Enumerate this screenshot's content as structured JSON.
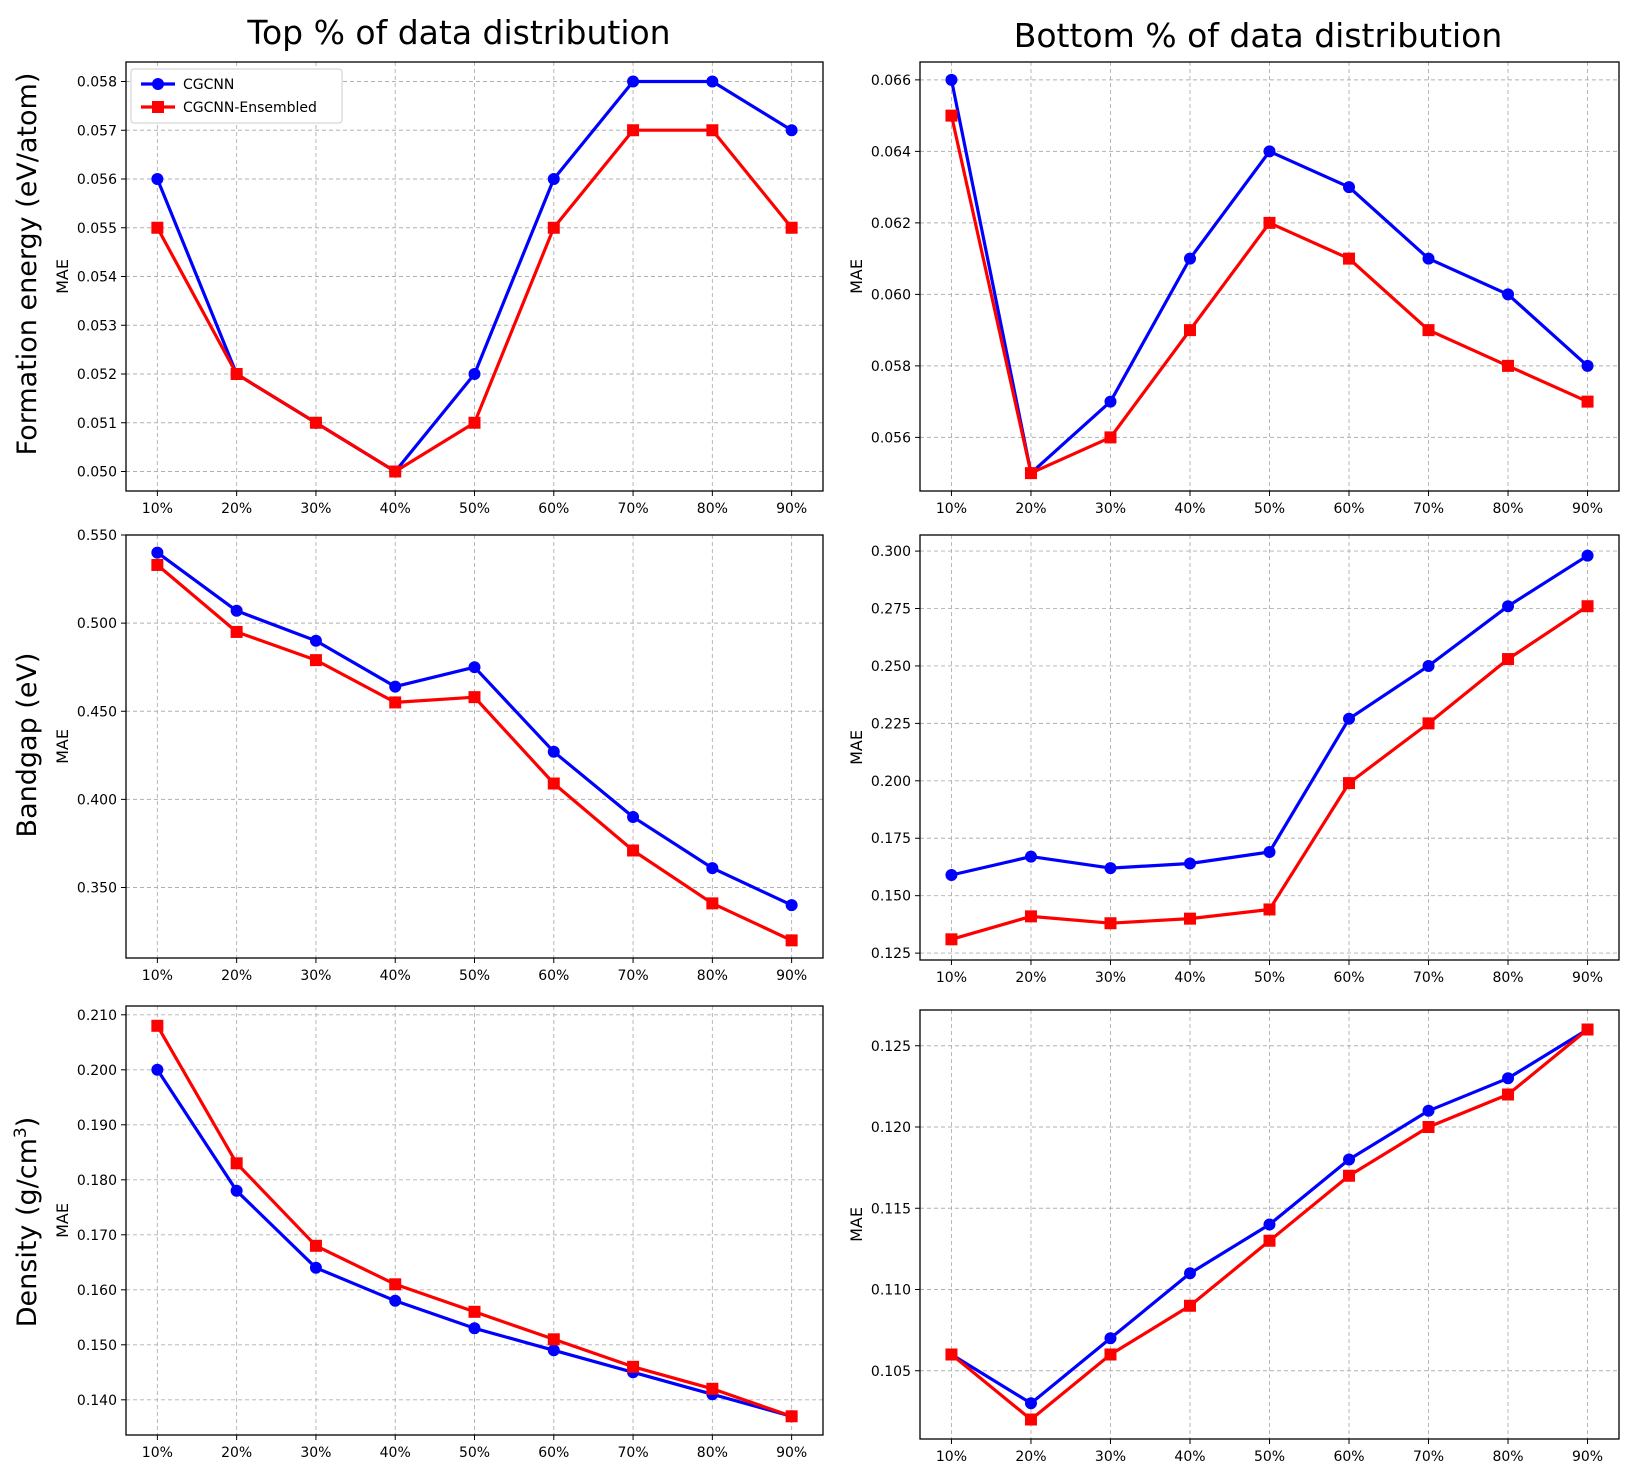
{
  "figure": {
    "column_titles": [
      "Top % of data distribution",
      "Bottom % of data distribution"
    ],
    "row_labels": [
      {
        "text": "Formation energy (eV/atom)",
        "sup": ""
      },
      {
        "text": "Bandgap (eV)",
        "sup": ""
      },
      {
        "text": "Density (g/cm",
        "sup": "3",
        "tail": ")"
      }
    ],
    "colors": {
      "CGCNN": "#0000ff",
      "CGCNN-Ensembled": "#ff0000",
      "grid": "#b0b0b0"
    }
  },
  "chart_data": [
    {
      "type": "line",
      "row": 0,
      "col": 0,
      "title": "",
      "xlabel": "",
      "ylabel": "MAE",
      "categories": [
        "10%",
        "20%",
        "30%",
        "40%",
        "50%",
        "60%",
        "70%",
        "80%",
        "90%"
      ],
      "ylim": [
        0.0496,
        0.0584
      ],
      "yticks": [
        0.05,
        0.051,
        0.052,
        0.053,
        0.054,
        0.055,
        0.056,
        0.057,
        0.058
      ],
      "ytick_labels": [
        "0.050",
        "0.051",
        "0.052",
        "0.053",
        "0.054",
        "0.055",
        "0.056",
        "0.057",
        "0.058"
      ],
      "legend": {
        "placement": "top-left",
        "entries": [
          "CGCNN",
          "CGCNN-Ensembled"
        ]
      },
      "series": [
        {
          "name": "CGCNN",
          "color": "#0000ff",
          "marker": "circle",
          "values": [
            0.056,
            0.052,
            0.051,
            0.05,
            0.052,
            0.056,
            0.058,
            0.058,
            0.057
          ]
        },
        {
          "name": "CGCNN-Ensembled",
          "color": "#ff0000",
          "marker": "square",
          "values": [
            0.055,
            0.052,
            0.051,
            0.05,
            0.051,
            0.055,
            0.057,
            0.057,
            0.055
          ]
        }
      ]
    },
    {
      "type": "line",
      "row": 0,
      "col": 1,
      "title": "",
      "xlabel": "",
      "ylabel": "MAE",
      "categories": [
        "10%",
        "20%",
        "30%",
        "40%",
        "50%",
        "60%",
        "70%",
        "80%",
        "90%"
      ],
      "ylim": [
        0.0545,
        0.0665
      ],
      "yticks": [
        0.056,
        0.058,
        0.06,
        0.062,
        0.064,
        0.066
      ],
      "ytick_labels": [
        "0.056",
        "0.058",
        "0.060",
        "0.062",
        "0.064",
        "0.066"
      ],
      "series": [
        {
          "name": "CGCNN",
          "color": "#0000ff",
          "marker": "circle",
          "values": [
            0.066,
            0.055,
            0.057,
            0.061,
            0.064,
            0.063,
            0.061,
            0.06,
            0.058
          ]
        },
        {
          "name": "CGCNN-Ensembled",
          "color": "#ff0000",
          "marker": "square",
          "values": [
            0.065,
            0.055,
            0.056,
            0.059,
            0.062,
            0.061,
            0.059,
            0.058,
            0.057
          ]
        }
      ]
    },
    {
      "type": "line",
      "row": 1,
      "col": 0,
      "title": "",
      "xlabel": "",
      "ylabel": "MAE",
      "categories": [
        "10%",
        "20%",
        "30%",
        "40%",
        "50%",
        "60%",
        "70%",
        "80%",
        "90%"
      ],
      "ylim": [
        0.31,
        0.55
      ],
      "yticks": [
        0.35,
        0.4,
        0.45,
        0.5,
        0.55
      ],
      "ytick_labels": [
        "0.350",
        "0.400",
        "0.450",
        "0.500",
        "0.550"
      ],
      "series": [
        {
          "name": "CGCNN",
          "color": "#0000ff",
          "marker": "circle",
          "values": [
            0.54,
            0.507,
            0.49,
            0.464,
            0.475,
            0.427,
            0.39,
            0.361,
            0.34
          ]
        },
        {
          "name": "CGCNN-Ensembled",
          "color": "#ff0000",
          "marker": "square",
          "values": [
            0.533,
            0.495,
            0.479,
            0.455,
            0.458,
            0.409,
            0.371,
            0.341,
            0.32
          ]
        }
      ]
    },
    {
      "type": "line",
      "row": 1,
      "col": 1,
      "title": "",
      "xlabel": "",
      "ylabel": "MAE",
      "categories": [
        "10%",
        "20%",
        "30%",
        "40%",
        "50%",
        "60%",
        "70%",
        "80%",
        "90%"
      ],
      "ylim": [
        0.122,
        0.307
      ],
      "yticks": [
        0.125,
        0.15,
        0.175,
        0.2,
        0.225,
        0.25,
        0.275,
        0.3
      ],
      "ytick_labels": [
        "0.125",
        "0.150",
        "0.175",
        "0.200",
        "0.225",
        "0.250",
        "0.275",
        "0.300"
      ],
      "series": [
        {
          "name": "CGCNN",
          "color": "#0000ff",
          "marker": "circle",
          "values": [
            0.159,
            0.167,
            0.162,
            0.164,
            0.169,
            0.227,
            0.25,
            0.276,
            0.298
          ]
        },
        {
          "name": "CGCNN-Ensembled",
          "color": "#ff0000",
          "marker": "square",
          "values": [
            0.131,
            0.141,
            0.138,
            0.14,
            0.144,
            0.199,
            0.225,
            0.253,
            0.276
          ]
        }
      ]
    },
    {
      "type": "line",
      "row": 2,
      "col": 0,
      "title": "",
      "xlabel": "",
      "ylabel": "MAE",
      "categories": [
        "10%",
        "20%",
        "30%",
        "40%",
        "50%",
        "60%",
        "70%",
        "80%",
        "90%"
      ],
      "ylim": [
        0.1336,
        0.2116
      ],
      "yticks": [
        0.14,
        0.15,
        0.16,
        0.17,
        0.18,
        0.19,
        0.2,
        0.21
      ],
      "ytick_labels": [
        "0.140",
        "0.150",
        "0.160",
        "0.170",
        "0.180",
        "0.190",
        "0.200",
        "0.210"
      ],
      "series": [
        {
          "name": "CGCNN",
          "color": "#0000ff",
          "marker": "circle",
          "values": [
            0.2,
            0.178,
            0.164,
            0.158,
            0.153,
            0.149,
            0.145,
            0.141,
            0.137
          ]
        },
        {
          "name": "CGCNN-Ensembled",
          "color": "#ff0000",
          "marker": "square",
          "values": [
            0.208,
            0.183,
            0.168,
            0.161,
            0.156,
            0.151,
            0.146,
            0.142,
            0.137
          ]
        }
      ]
    },
    {
      "type": "line",
      "row": 2,
      "col": 1,
      "title": "",
      "xlabel": "",
      "ylabel": "MAE",
      "categories": [
        "10%",
        "20%",
        "30%",
        "40%",
        "50%",
        "60%",
        "70%",
        "80%",
        "90%"
      ],
      "ylim": [
        0.1008,
        0.1272
      ],
      "yticks": [
        0.105,
        0.11,
        0.115,
        0.12,
        0.125
      ],
      "ytick_labels": [
        "0.105",
        "0.110",
        "0.115",
        "0.120",
        "0.125"
      ],
      "series": [
        {
          "name": "CGCNN",
          "color": "#0000ff",
          "marker": "circle",
          "values": [
            0.106,
            0.103,
            0.107,
            0.111,
            0.114,
            0.118,
            0.121,
            0.123,
            0.126
          ]
        },
        {
          "name": "CGCNN-Ensembled",
          "color": "#ff0000",
          "marker": "square",
          "values": [
            0.106,
            0.102,
            0.106,
            0.109,
            0.113,
            0.117,
            0.12,
            0.122,
            0.126
          ]
        }
      ]
    }
  ]
}
